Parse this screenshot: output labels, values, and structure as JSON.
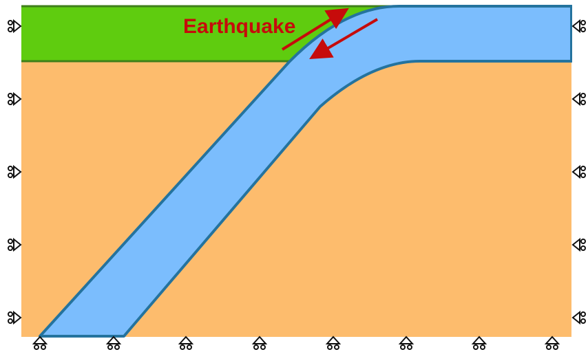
{
  "diagram": {
    "label": "Earthquake",
    "colors": {
      "crust": "#5fcc0f",
      "crust_border": "#3f7f1a",
      "mantle": "#fdbc6d",
      "slab": "#7bbdfd",
      "slab_border": "#24739e",
      "arrow": "#c60b0b",
      "support": "#111111"
    },
    "supports": {
      "left_roller_count": 5,
      "right_roller_count": 5,
      "bottom_roller_count": 8
    }
  }
}
